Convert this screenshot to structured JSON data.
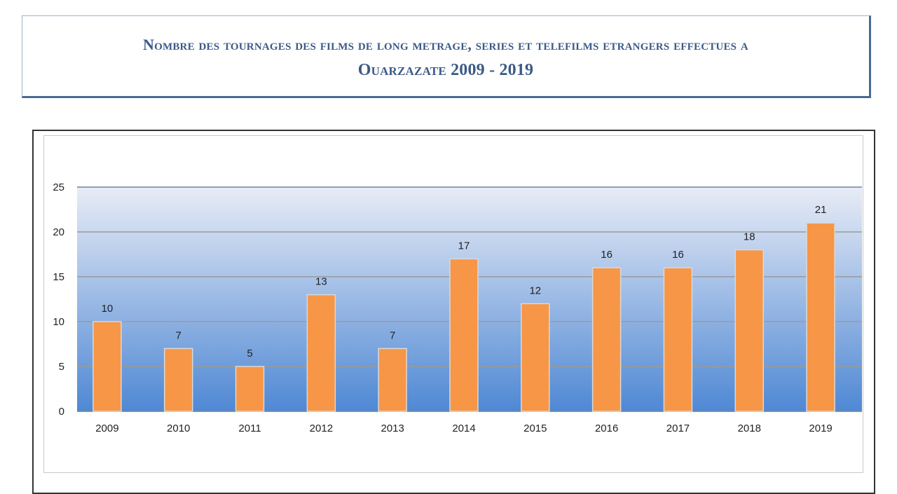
{
  "header": {
    "title_line1": "Nombre des tournages des films de  long metrage, series et telefilms etrangers effectues a",
    "title_line2": "Ouarzazate 2009 - 2019"
  },
  "colors": {
    "bar_fill": "#f79646",
    "bar_stroke": "#d9d9d9",
    "plot_top": "#e8ecf6",
    "plot_bottom": "#4f88d4",
    "gridline": "#9a9a9a",
    "title": "#3b5a85"
  },
  "chart_data": {
    "type": "bar",
    "title": "Nombre des tournages des films de  long metrage, series et telefilms etrangers effectues a Ouarzazate 2009 - 2019",
    "categories": [
      "2009",
      "2010",
      "2011",
      "2012",
      "2013",
      "2014",
      "2015",
      "2016",
      "2017",
      "2018",
      "2019"
    ],
    "values": [
      10,
      7,
      5,
      13,
      7,
      17,
      12,
      16,
      16,
      18,
      21
    ],
    "ylim": [
      0,
      25
    ],
    "yticks": [
      0,
      5,
      10,
      15,
      20,
      25
    ],
    "xlabel": "",
    "ylabel": "",
    "grid": true,
    "legend": "none",
    "data_labels": true
  }
}
